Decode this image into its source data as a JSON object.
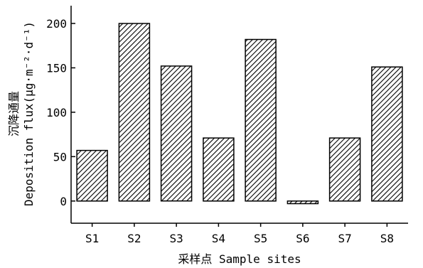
{
  "chart_data": {
    "type": "bar",
    "title": "",
    "categories": [
      "S1",
      "S2",
      "S3",
      "S4",
      "S5",
      "S6",
      "S7",
      "S8"
    ],
    "series": [
      {
        "values": [
          57,
          200,
          152,
          71,
          182,
          -3,
          71,
          151
        ]
      }
    ],
    "xlabel": "采样点 Sample sites",
    "ylabel_cn": "沉降通量",
    "ylabel_en": "Deposition flux(μg·m⁻²·d⁻¹)",
    "ylim": [
      -25,
      220
    ],
    "yticks": [
      0,
      50,
      100,
      150,
      200
    ],
    "bar_fill": "hatched",
    "colors": {
      "bar_stroke": "#000000",
      "hatch": "#000000",
      "axis": "#000000"
    },
    "grid": false,
    "legend": "none"
  }
}
